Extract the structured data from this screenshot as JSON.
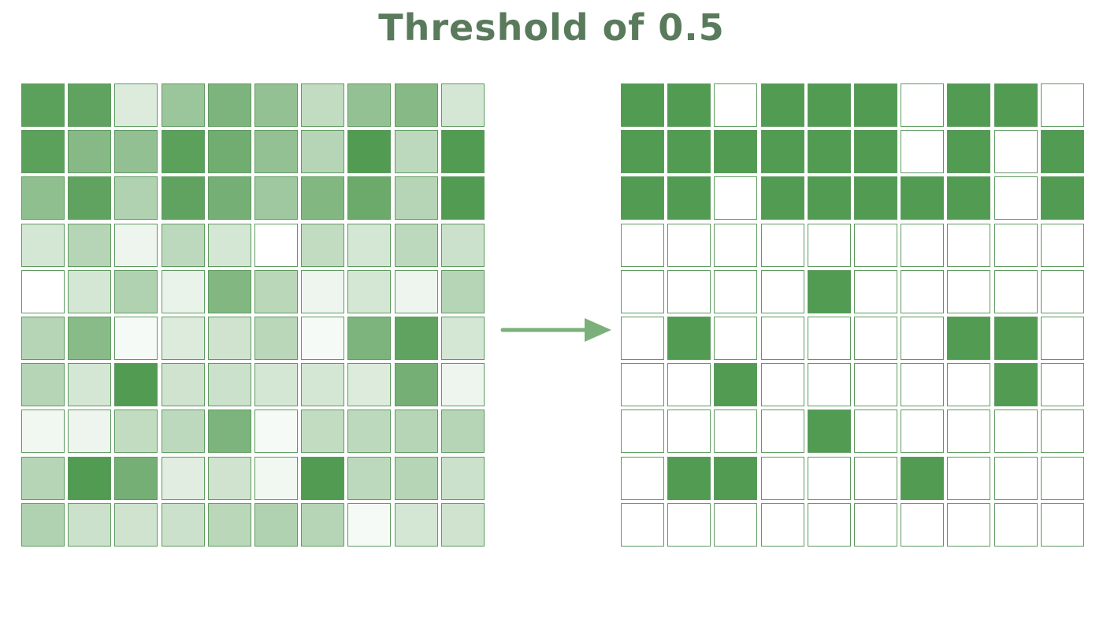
{
  "title": "Threshold of 0.5",
  "colors": {
    "title": "#5a7a5c",
    "filled": "#529b52",
    "empty": "#ffffff",
    "cell_border": "#5f9a60",
    "arrow": "#7bb07b"
  },
  "diagram": {
    "threshold": 0.5,
    "rows": 10,
    "cols": 10,
    "input_values": [
      [
        0.95,
        0.92,
        0.2,
        0.58,
        0.75,
        0.62,
        0.35,
        0.62,
        0.7,
        0.25
      ],
      [
        0.95,
        0.7,
        0.63,
        0.95,
        0.82,
        0.62,
        0.42,
        1.0,
        0.38,
        1.0
      ],
      [
        0.65,
        0.92,
        0.45,
        0.92,
        0.8,
        0.55,
        0.72,
        0.85,
        0.42,
        1.0
      ],
      [
        0.25,
        0.42,
        0.1,
        0.38,
        0.25,
        0.0,
        0.35,
        0.25,
        0.38,
        0.3
      ],
      [
        0.0,
        0.25,
        0.45,
        0.12,
        0.72,
        0.4,
        0.1,
        0.25,
        0.1,
        0.42
      ],
      [
        0.42,
        0.68,
        0.05,
        0.2,
        0.28,
        0.4,
        0.05,
        0.75,
        0.92,
        0.25
      ],
      [
        0.42,
        0.25,
        1.0,
        0.28,
        0.3,
        0.25,
        0.25,
        0.2,
        0.8,
        0.1
      ],
      [
        0.08,
        0.1,
        0.35,
        0.38,
        0.75,
        0.05,
        0.35,
        0.38,
        0.42,
        0.42
      ],
      [
        0.42,
        1.0,
        0.8,
        0.18,
        0.28,
        0.08,
        1.0,
        0.38,
        0.42,
        0.3
      ],
      [
        0.45,
        0.3,
        0.28,
        0.3,
        0.4,
        0.45,
        0.42,
        0.05,
        0.25,
        0.28
      ]
    ],
    "output_values": [
      [
        1,
        1,
        0,
        1,
        1,
        1,
        0,
        1,
        1,
        0
      ],
      [
        1,
        1,
        1,
        1,
        1,
        1,
        0,
        1,
        0,
        1
      ],
      [
        1,
        1,
        0,
        1,
        1,
        1,
        1,
        1,
        0,
        1
      ],
      [
        0,
        0,
        0,
        0,
        0,
        0,
        0,
        0,
        0,
        0
      ],
      [
        0,
        0,
        0,
        0,
        1,
        0,
        0,
        0,
        0,
        0
      ],
      [
        0,
        1,
        0,
        0,
        0,
        0,
        0,
        1,
        1,
        0
      ],
      [
        0,
        0,
        1,
        0,
        0,
        0,
        0,
        0,
        1,
        0
      ],
      [
        0,
        0,
        0,
        0,
        1,
        0,
        0,
        0,
        0,
        0
      ],
      [
        0,
        1,
        1,
        0,
        0,
        0,
        1,
        0,
        0,
        0
      ],
      [
        0,
        0,
        0,
        0,
        0,
        0,
        0,
        0,
        0,
        0
      ]
    ]
  }
}
